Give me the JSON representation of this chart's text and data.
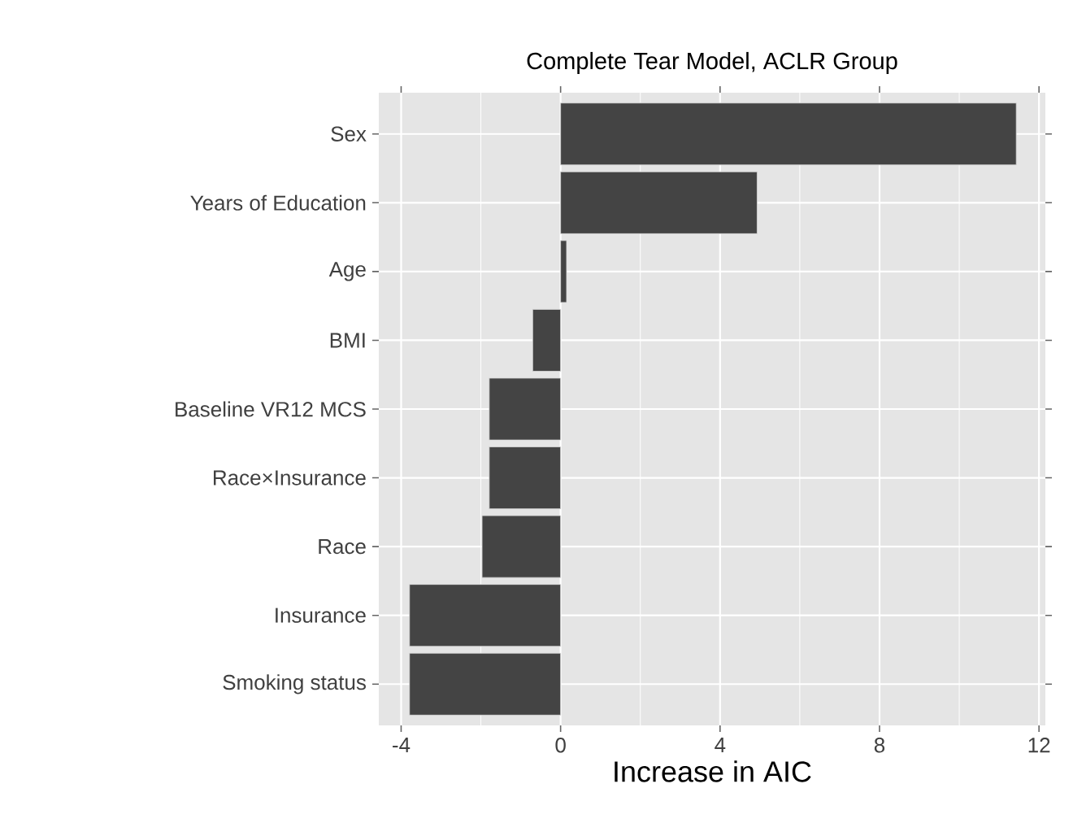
{
  "chart_data": {
    "type": "bar",
    "orientation": "horizontal",
    "title": "Complete Tear Model, ACLR Group",
    "xlabel": "Increase in AIC",
    "categories": [
      "Sex",
      "Years of Education",
      "Age",
      "BMI",
      "Baseline VR12 MCS",
      "Race×Insurance",
      "Race",
      "Insurance",
      "Smoking status"
    ],
    "values": [
      11.43,
      4.93,
      0.15,
      -0.7,
      -1.79,
      -1.79,
      -1.97,
      -3.79,
      -3.79
    ],
    "color": "#444444",
    "xlim": [
      -4.56,
      12.16
    ],
    "xticks": [
      -4,
      0,
      4,
      8,
      12
    ],
    "grid": true
  }
}
